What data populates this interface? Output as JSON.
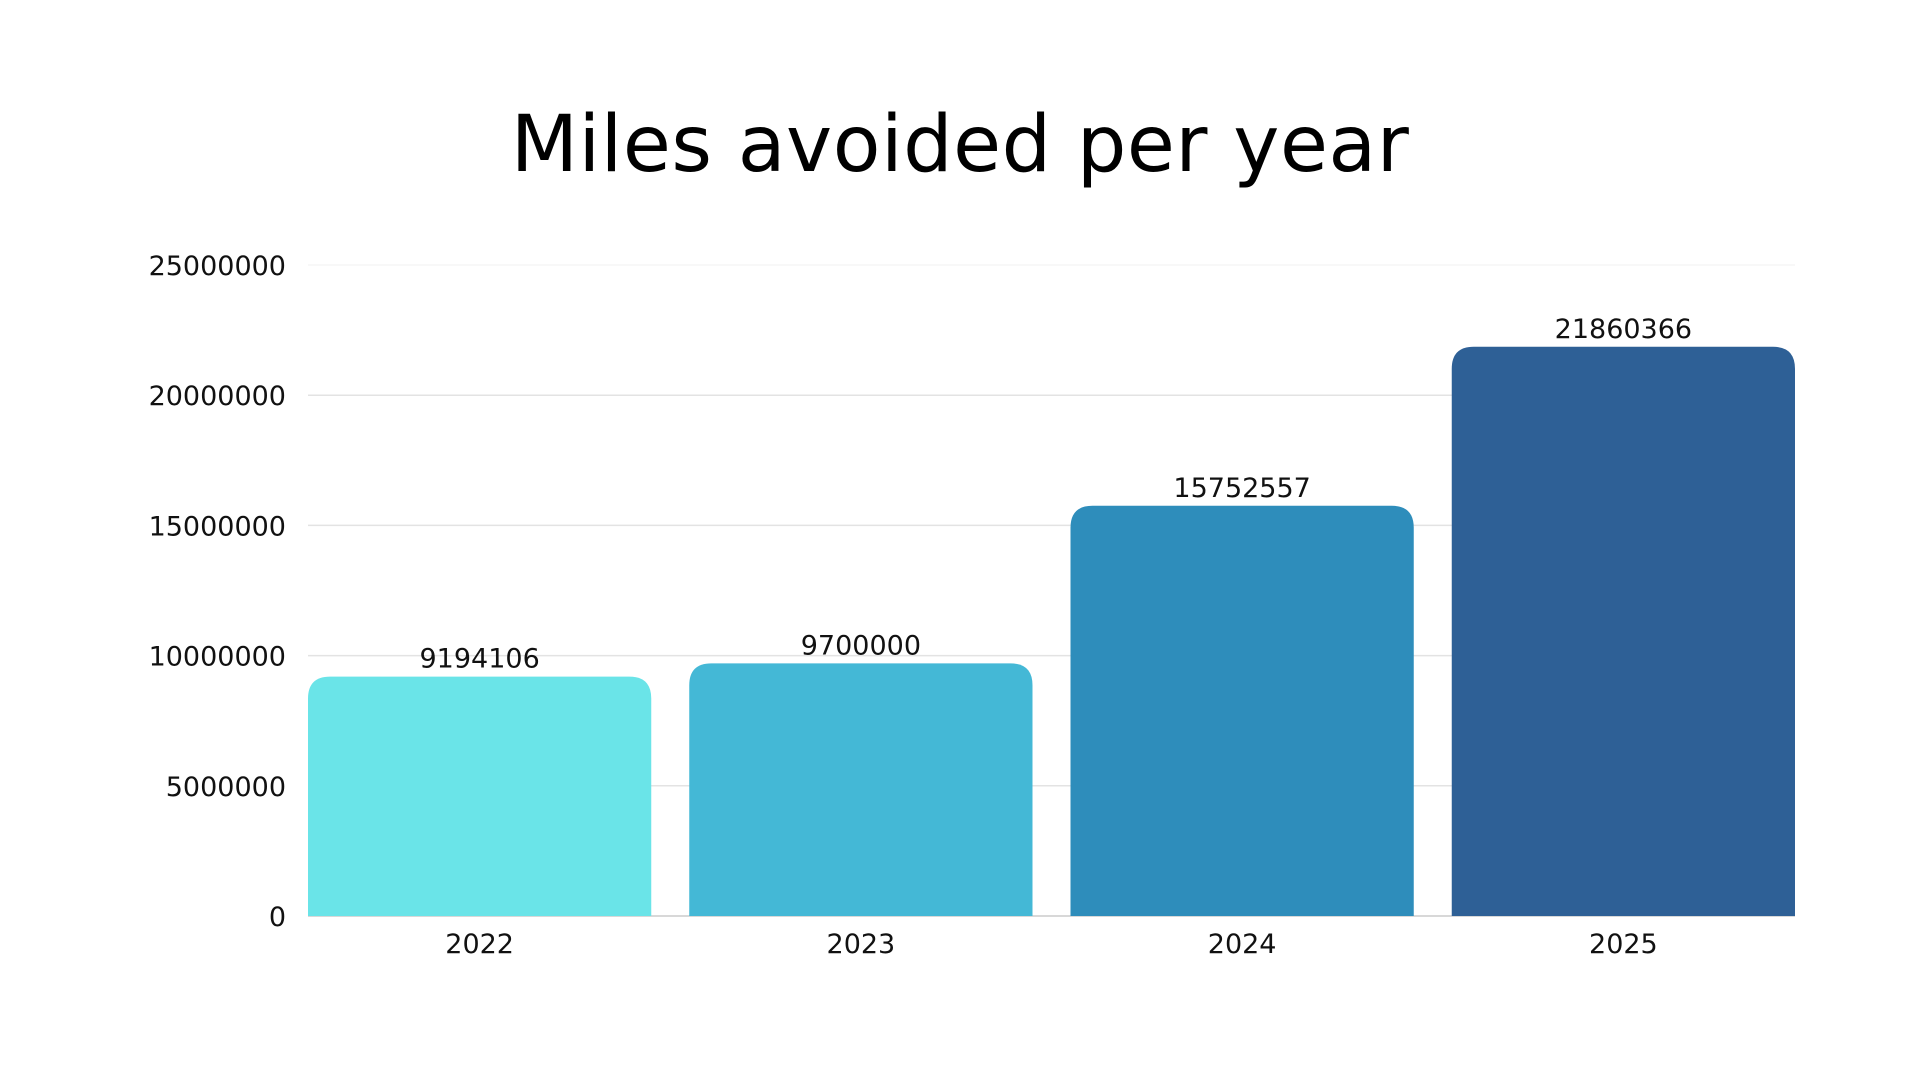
{
  "chart_data": {
    "type": "bar",
    "title": "Miles avoided per year",
    "xlabel": "",
    "ylabel": "",
    "categories": [
      "2022",
      "2023",
      "2024",
      "2025"
    ],
    "values": [
      9194106,
      9700000,
      15752557,
      21860366
    ],
    "data_labels": [
      "9194106",
      "9700000",
      "15752557",
      "21860366"
    ],
    "ylim": [
      0,
      25000000
    ],
    "yticks": [
      0,
      5000000,
      10000000,
      15000000,
      20000000,
      25000000
    ],
    "ytick_labels": [
      "0",
      "5000000",
      "10000000",
      "15000000",
      "20000000",
      "25000000"
    ],
    "grid": true,
    "legend": "none",
    "colors": [
      "#6ae4e8",
      "#44b8d6",
      "#2e8dbb",
      "#2e6096"
    ],
    "grid_color": "#e3e3e3",
    "baseline_color": "#cccccc"
  }
}
